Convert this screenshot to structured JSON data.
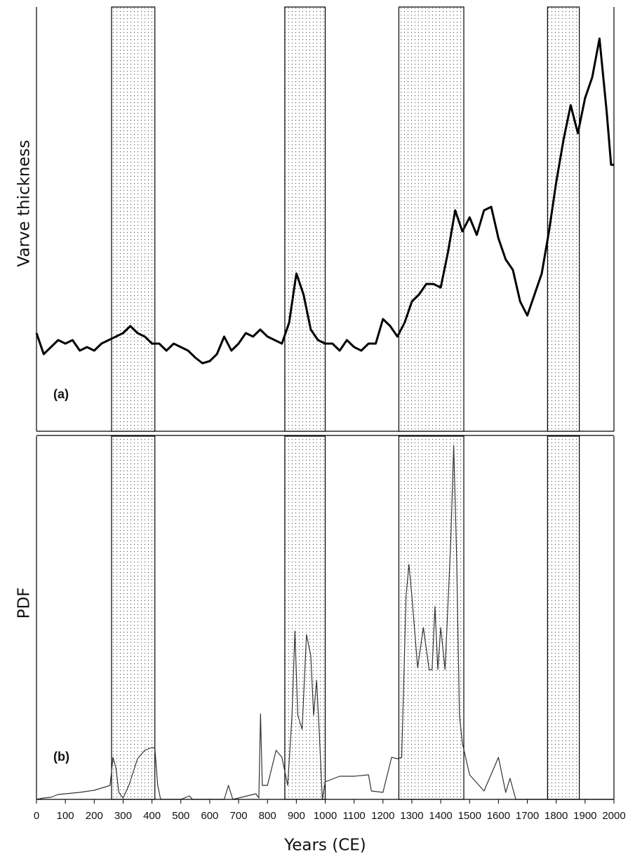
{
  "chart_data": [
    {
      "type": "line",
      "y_label": "Varve thickness",
      "panel_label": "(a)",
      "color": "#000000",
      "x": [
        0,
        25,
        50,
        75,
        100,
        125,
        150,
        175,
        200,
        225,
        250,
        275,
        300,
        325,
        350,
        375,
        400,
        425,
        450,
        475,
        500,
        525,
        550,
        575,
        600,
        625,
        650,
        675,
        700,
        725,
        750,
        775,
        800,
        825,
        850,
        875,
        900,
        925,
        950,
        975,
        1000,
        1025,
        1050,
        1075,
        1100,
        1125,
        1150,
        1175,
        1200,
        1225,
        1250,
        1275,
        1300,
        1325,
        1350,
        1375,
        1400,
        1425,
        1450,
        1475,
        1500,
        1525,
        1550,
        1575,
        1600,
        1625,
        1650,
        1675,
        1700,
        1725,
        1750,
        1775,
        1800,
        1825,
        1850,
        1875,
        1900,
        1925,
        1950,
        1975,
        1990,
        2000
      ],
      "values": [
        140,
        110,
        120,
        130,
        125,
        130,
        115,
        120,
        115,
        125,
        130,
        135,
        140,
        150,
        140,
        135,
        125,
        125,
        115,
        125,
        120,
        115,
        105,
        97,
        100,
        110,
        135,
        115,
        125,
        140,
        135,
        145,
        135,
        130,
        125,
        155,
        225,
        195,
        145,
        130,
        125,
        125,
        115,
        130,
        120,
        115,
        125,
        125,
        160,
        150,
        135,
        155,
        185,
        195,
        210,
        210,
        205,
        255,
        315,
        285,
        305,
        280,
        315,
        320,
        275,
        245,
        230,
        185,
        165,
        195,
        225,
        285,
        355,
        415,
        465,
        425,
        475,
        505,
        560,
        455,
        380,
        380
      ],
      "xlim": [
        0,
        2000
      ],
      "ylim": [
        0,
        605
      ],
      "shaded_periods": [
        [
          260,
          410
        ],
        [
          860,
          1000
        ],
        [
          1255,
          1480
        ],
        [
          1770,
          1880
        ]
      ]
    },
    {
      "type": "line",
      "y_label": "PDF",
      "panel_label": "(b)",
      "x_label": "Years (CE)",
      "color": "#333333",
      "x": [
        0,
        25,
        50,
        75,
        100,
        150,
        200,
        240,
        255,
        265,
        275,
        285,
        300,
        320,
        350,
        375,
        400,
        410,
        420,
        430,
        500,
        530,
        540,
        650,
        665,
        680,
        760,
        770,
        776,
        782,
        800,
        830,
        850,
        870,
        885,
        895,
        905,
        920,
        935,
        950,
        960,
        970,
        980,
        990,
        1000,
        1050,
        1100,
        1150,
        1160,
        1200,
        1230,
        1250,
        1265,
        1280,
        1290,
        1300,
        1320,
        1340,
        1360,
        1370,
        1380,
        1390,
        1400,
        1415,
        1435,
        1445,
        1455,
        1465,
        1475,
        1500,
        1550,
        1600,
        1610,
        1625,
        1640,
        1660,
        2000
      ],
      "values": [
        0,
        2,
        3,
        7,
        8,
        10,
        13,
        18,
        20,
        60,
        45,
        10,
        2,
        20,
        58,
        70,
        74,
        73,
        20,
        0,
        0,
        5,
        0,
        0,
        20,
        0,
        8,
        2,
        122,
        20,
        20,
        70,
        60,
        20,
        120,
        240,
        120,
        100,
        235,
        205,
        120,
        170,
        90,
        0,
        25,
        33,
        33,
        35,
        12,
        10,
        60,
        58,
        60,
        290,
        335,
        290,
        188,
        245,
        185,
        185,
        275,
        185,
        245,
        185,
        370,
        505,
        350,
        120,
        80,
        35,
        12,
        60,
        40,
        10,
        30,
        0,
        0
      ],
      "xlim": [
        0,
        2000
      ],
      "ylim": [
        0,
        518
      ],
      "xticks": [
        0,
        100,
        200,
        300,
        400,
        500,
        600,
        700,
        800,
        900,
        1000,
        1100,
        1200,
        1300,
        1400,
        1500,
        1600,
        1700,
        1800,
        1900,
        2000
      ],
      "shaded_periods": [
        [
          260,
          410
        ],
        [
          860,
          1000
        ],
        [
          1255,
          1480
        ],
        [
          1770,
          1880
        ]
      ]
    }
  ]
}
